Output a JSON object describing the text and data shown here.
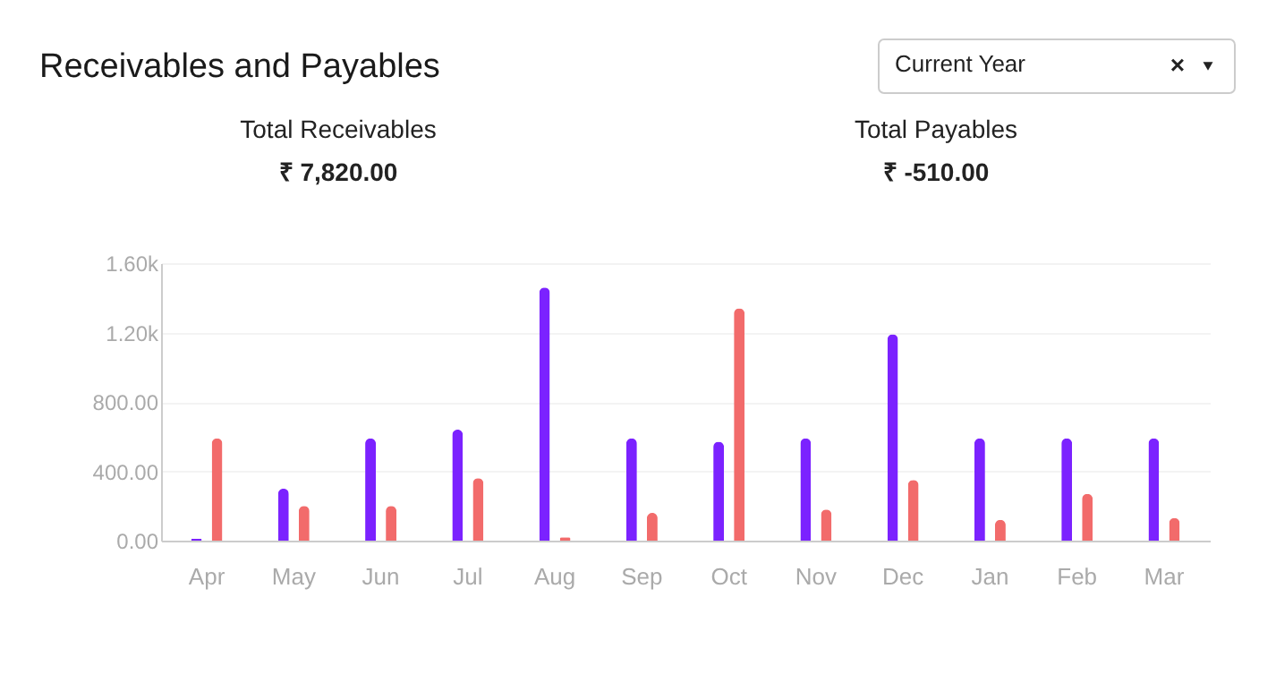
{
  "chart_data": {
    "type": "bar",
    "title": "Receivables and Payables",
    "annotations": [
      "Total Receivables",
      "₹ 7,820.00",
      "Total Payables",
      "₹ -510.00",
      "Current Year",
      "×"
    ],
    "categories": [
      "Apr",
      "May",
      "Jun",
      "Jul",
      "Aug",
      "Sep",
      "Oct",
      "Nov",
      "Dec",
      "Jan",
      "Feb",
      "Mar"
    ],
    "series": [
      {
        "color": "#7b22ff",
        "values": [
          10,
          300,
          590,
          640,
          1460,
          590,
          570,
          590,
          1190,
          590,
          590,
          590
        ]
      },
      {
        "color": "#f26b6b",
        "values": [
          590,
          200,
          200,
          360,
          20,
          160,
          1340,
          180,
          350,
          120,
          270,
          130
        ]
      }
    ],
    "ylim": [
      0,
      1600
    ],
    "yticks": [
      {
        "value": 0,
        "label": "0.00"
      },
      {
        "value": 400,
        "label": "400.00"
      },
      {
        "value": 800,
        "label": "800.00"
      },
      {
        "value": 1200,
        "label": "1.20k"
      },
      {
        "value": 1600,
        "label": "1.60k"
      }
    ],
    "grid": "y"
  }
}
